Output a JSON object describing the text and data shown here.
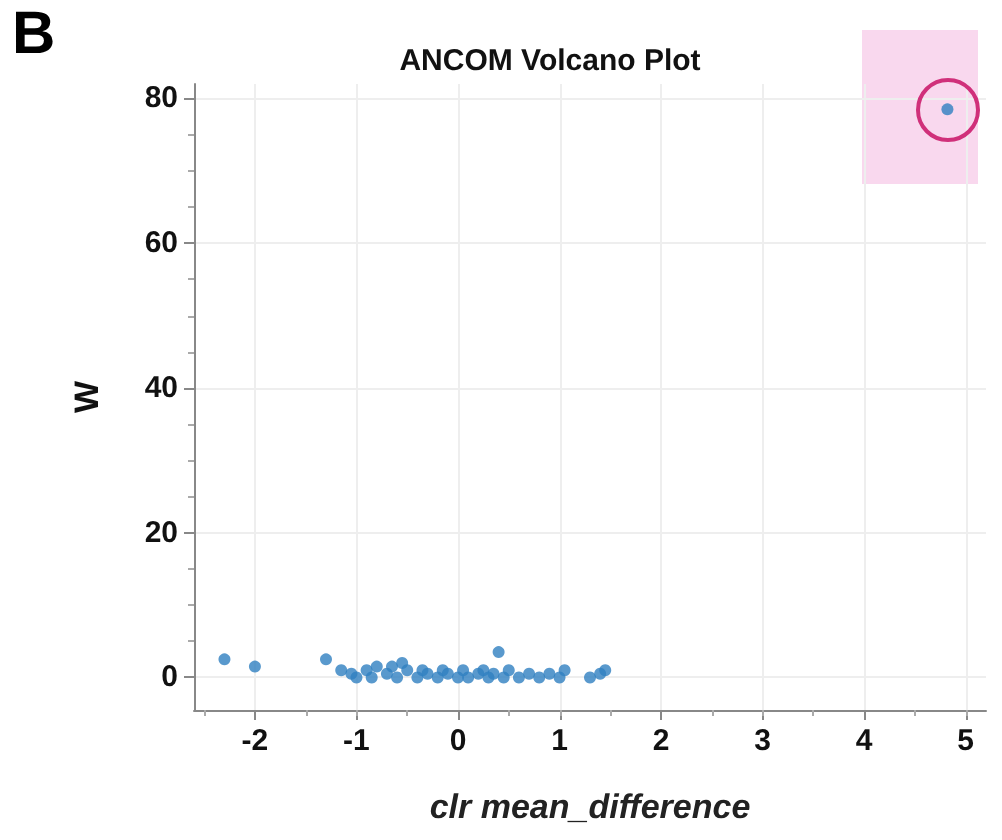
{
  "chart_data": {
    "type": "scatter",
    "title": "ANCOM Volcano Plot",
    "xlabel": "clr mean_difference",
    "ylabel": "W",
    "annotations": [
      "B"
    ],
    "x": [
      -2.3,
      -2.0,
      -1.3,
      -1.15,
      -1.05,
      -1.0,
      -0.9,
      -0.85,
      -0.8,
      -0.7,
      -0.65,
      -0.6,
      -0.55,
      -0.5,
      -0.4,
      -0.35,
      -0.3,
      -0.2,
      -0.15,
      -0.1,
      0.0,
      0.05,
      0.1,
      0.2,
      0.25,
      0.3,
      0.35,
      0.4,
      0.45,
      0.5,
      0.6,
      0.7,
      0.8,
      0.9,
      1.0,
      1.05,
      1.3,
      1.4,
      1.45,
      4.82
    ],
    "values": [
      2.5,
      1.5,
      2.5,
      1.0,
      0.5,
      0.0,
      1.0,
      0.0,
      1.5,
      0.5,
      1.5,
      0.0,
      2.0,
      1.0,
      0.0,
      1.0,
      0.5,
      0.0,
      1.0,
      0.5,
      0.0,
      1.0,
      0.0,
      0.5,
      1.0,
      0.0,
      0.5,
      3.5,
      0.0,
      1.0,
      0.0,
      0.5,
      0.0,
      0.5,
      0.0,
      1.0,
      0.0,
      0.5,
      1.0,
      78.5
    ],
    "color": "#2f7fc1",
    "marker": "circle",
    "xlim": [
      -2.6,
      5.2
    ],
    "ylim": [
      -4.5,
      82
    ],
    "xticks": [
      -2,
      -1,
      0,
      1,
      2,
      3,
      4,
      5
    ],
    "yticks": [
      0,
      20,
      40,
      60,
      80
    ],
    "grid": true
  }
}
